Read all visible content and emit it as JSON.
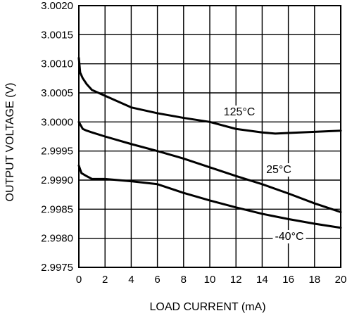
{
  "chart_data": {
    "type": "line",
    "title": "",
    "xlabel": "LOAD CURRENT (mA)",
    "ylabel": "OUTPUT VOLTAGE (V)",
    "xlim": [
      0,
      20
    ],
    "ylim": [
      2.9975,
      3.002
    ],
    "x_ticks": [
      "0",
      "2",
      "4",
      "6",
      "8",
      "10",
      "12",
      "14",
      "16",
      "18",
      "20"
    ],
    "y_ticks": [
      "3.0020",
      "3.0015",
      "3.0010",
      "3.0005",
      "3.0000",
      "2.9995",
      "2.9990",
      "2.9985",
      "2.9980",
      "2.9975"
    ],
    "grid": true,
    "legend": "none",
    "series": [
      {
        "name": "125°C",
        "x": [
          0,
          0.1,
          0.3,
          0.6,
          1,
          2,
          4,
          6,
          8,
          10,
          12,
          14,
          15,
          16,
          18,
          20
        ],
        "y": [
          3.0011,
          3.00085,
          3.00075,
          3.00065,
          3.00055,
          3.00045,
          3.00025,
          3.00015,
          3.00007,
          3.0,
          2.99988,
          2.99982,
          2.9998,
          2.99981,
          2.99983,
          2.99985
        ]
      },
      {
        "name": "25°C",
        "x": [
          0,
          0.3,
          0.6,
          1,
          2,
          4,
          6,
          8,
          10,
          12,
          14,
          16,
          18,
          20
        ],
        "y": [
          3.0,
          2.99988,
          2.99985,
          2.99982,
          2.99975,
          2.99962,
          2.9995,
          2.99937,
          2.99922,
          2.99907,
          2.99893,
          2.99877,
          2.9986,
          2.99845
        ]
      },
      {
        "name": "-40°C",
        "x": [
          0,
          0.2,
          0.5,
          1,
          2,
          4,
          6,
          8,
          10,
          12,
          14,
          16,
          18,
          20
        ],
        "y": [
          2.99925,
          2.99912,
          2.99908,
          2.99902,
          2.99902,
          2.99898,
          2.99893,
          2.99878,
          2.99865,
          2.99853,
          2.99842,
          2.99833,
          2.99825,
          2.99818
        ]
      }
    ]
  }
}
